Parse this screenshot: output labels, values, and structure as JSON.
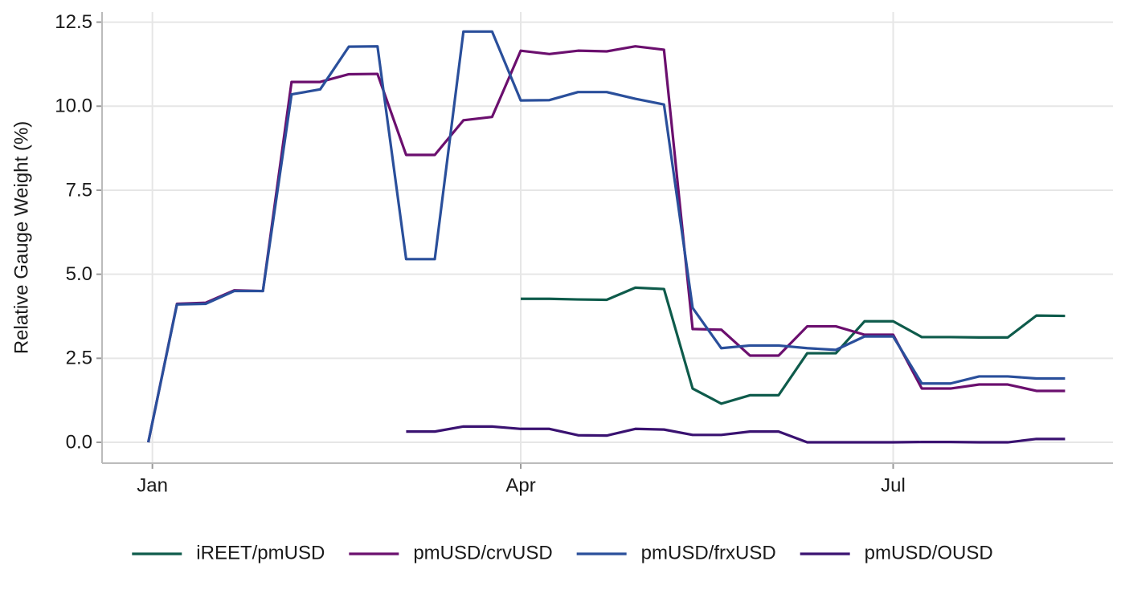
{
  "chart_data": {
    "type": "line",
    "y_label": "Relative Gauge Weight (%)",
    "x": [
      -1,
      6,
      13,
      20,
      27,
      34,
      41,
      48,
      55,
      62,
      69,
      76,
      83,
      90,
      97,
      104,
      111,
      118,
      125,
      132,
      139,
      146,
      153,
      160,
      167,
      174,
      181,
      188,
      195,
      202,
      209,
      216,
      223
    ],
    "xlim": [
      -12.3,
      234.7
    ],
    "xticks": [
      {
        "value": 0,
        "label": "Jan"
      },
      {
        "value": 90,
        "label": "Apr"
      },
      {
        "value": 181,
        "label": "Jul"
      }
    ],
    "ylim": [
      -0.62,
      12.8
    ],
    "yticks": [
      {
        "value": 0,
        "label": "0.0"
      },
      2.5,
      {
        "value": 5,
        "label": "5.0"
      },
      7.5,
      {
        "value": 10,
        "label": "10.0"
      },
      12.5
    ],
    "grid": true,
    "legend": "bottom",
    "series": [
      {
        "name": "iREET/pmUSD",
        "color": "#0e5b4b",
        "values": [
          null,
          null,
          null,
          null,
          null,
          null,
          null,
          null,
          null,
          null,
          null,
          null,
          null,
          4.27,
          4.27,
          4.25,
          4.24,
          4.6,
          4.56,
          1.6,
          1.15,
          1.4,
          1.4,
          2.65,
          2.65,
          3.6,
          3.6,
          3.13,
          3.13,
          3.12,
          3.12,
          3.77,
          3.76
        ]
      },
      {
        "name": "pmUSD/crvUSD",
        "color": "#6b0f6e",
        "values": [
          0,
          4.12,
          4.15,
          4.52,
          4.5,
          10.72,
          10.72,
          10.95,
          10.96,
          8.55,
          8.55,
          9.58,
          9.68,
          11.65,
          11.55,
          11.65,
          11.63,
          11.78,
          11.68,
          3.37,
          3.35,
          2.58,
          2.58,
          3.45,
          3.45,
          3.2,
          3.2,
          1.6,
          1.6,
          1.72,
          1.72,
          1.53,
          1.53
        ]
      },
      {
        "name": "pmUSD/frxUSD",
        "color": "#2a4f9b",
        "values": [
          0,
          4.1,
          4.12,
          4.5,
          4.5,
          10.35,
          10.5,
          11.77,
          11.78,
          5.45,
          5.45,
          12.22,
          12.22,
          10.17,
          10.18,
          10.42,
          10.42,
          10.22,
          10.05,
          4.0,
          2.8,
          2.88,
          2.88,
          2.8,
          2.75,
          3.15,
          3.15,
          1.75,
          1.75,
          1.96,
          1.96,
          1.9,
          1.9
        ]
      },
      {
        "name": "pmUSD/OUSD",
        "color": "#3a1271",
        "values": [
          null,
          null,
          null,
          null,
          null,
          null,
          null,
          null,
          null,
          0.32,
          0.32,
          0.47,
          0.47,
          0.4,
          0.4,
          0.21,
          0.2,
          0.4,
          0.38,
          0.22,
          0.22,
          0.32,
          0.32,
          0,
          0,
          0,
          0,
          0.01,
          0.01,
          0,
          0,
          0.1,
          0.1
        ]
      }
    ]
  }
}
